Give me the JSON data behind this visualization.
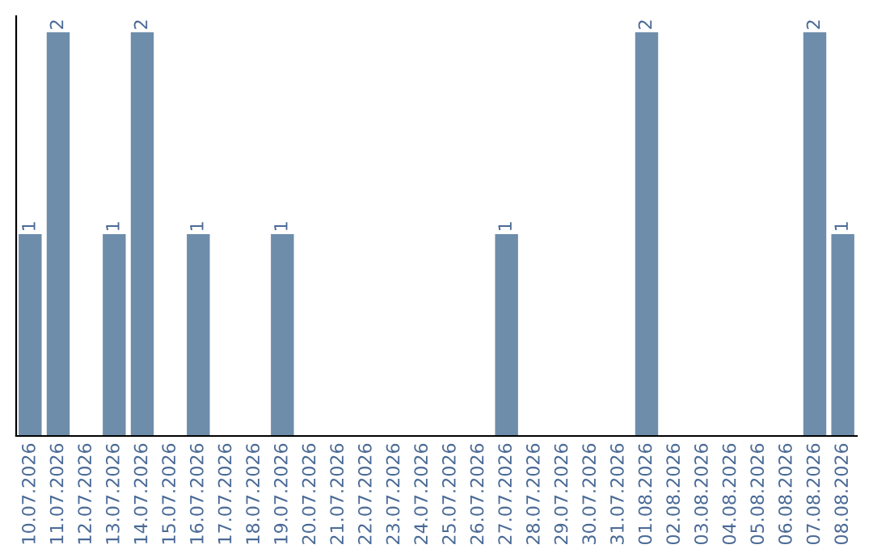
{
  "chart_data": {
    "type": "bar",
    "categories": [
      "10.07.2026",
      "11.07.2026",
      "12.07.2026",
      "13.07.2026",
      "14.07.2026",
      "15.07.2026",
      "16.07.2026",
      "17.07.2026",
      "18.07.2026",
      "19.07.2026",
      "20.07.2026",
      "21.07.2026",
      "22.07.2026",
      "23.07.2026",
      "24.07.2026",
      "25.07.2026",
      "26.07.2026",
      "27.07.2026",
      "28.07.2026",
      "29.07.2026",
      "30.07.2026",
      "31.07.2026",
      "01.08.2026",
      "02.08.2026",
      "03.08.2026",
      "04.08.2026",
      "05.08.2026",
      "06.08.2026",
      "07.08.2026",
      "08.08.2026"
    ],
    "values": [
      1,
      2,
      0,
      1,
      2,
      0,
      1,
      0,
      0,
      1,
      0,
      0,
      0,
      0,
      0,
      0,
      0,
      1,
      0,
      0,
      0,
      0,
      2,
      0,
      0,
      0,
      0,
      0,
      2,
      1
    ],
    "value_labels": [
      "1",
      "2",
      null,
      "1",
      "2",
      null,
      "1",
      null,
      null,
      "1",
      null,
      null,
      null,
      null,
      null,
      null,
      null,
      "1",
      null,
      null,
      null,
      null,
      "2",
      null,
      null,
      null,
      null,
      null,
      "2",
      "1"
    ],
    "color": "#6e8dab",
    "ylim": [
      0,
      2.08
    ],
    "tick_labels": "x",
    "grid": false,
    "legend": false
  }
}
